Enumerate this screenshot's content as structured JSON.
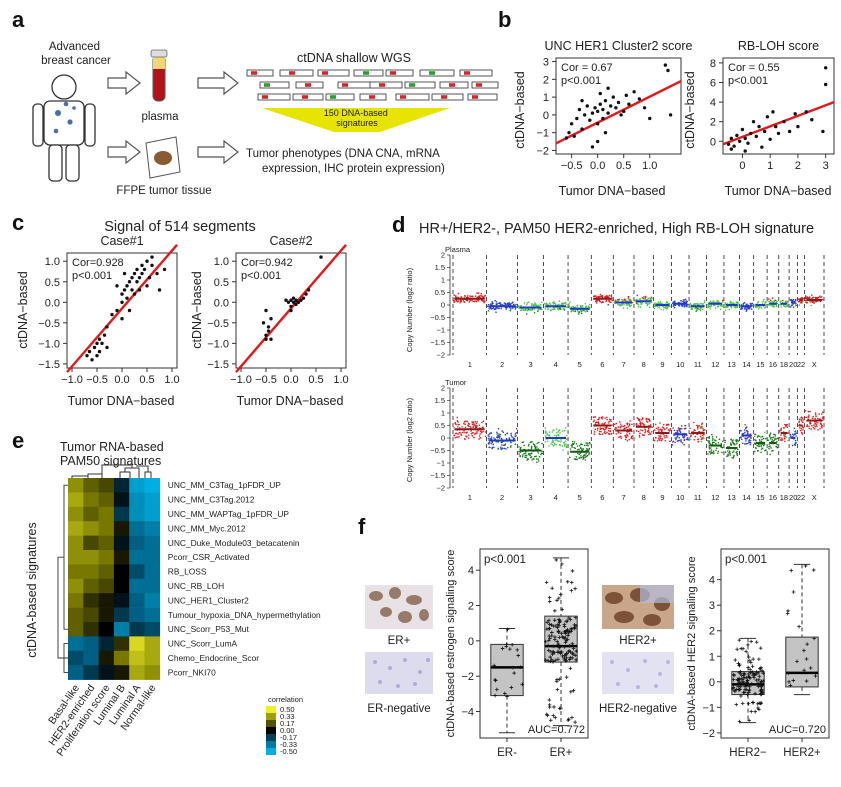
{
  "panel_a": {
    "letter": "a",
    "patient_label": "Advanced\nbreast cancer",
    "plasma_label": "plasma",
    "tissue_label": "FFPE tumor tissue",
    "wgs_title": "ctDNA shallow WGS",
    "signatures_label": "150 DNA-based\nsignatures",
    "phenotypes_label": "Tumor phenotypes (DNA CNA, mRNA\nexpression, IHC protein expression)"
  },
  "panel_b": {
    "letter": "b",
    "xlabel": "Tumor DNA−based",
    "ylabel": "ctDNA−based"
  },
  "panel_c": {
    "letter": "c",
    "title": "Signal of 514 segments",
    "xlabel": "Tumor DNA−based",
    "ylabel": "ctDNA−based"
  },
  "panel_d": {
    "letter": "d",
    "title": "HR+/HER2-, PAM50 HER2-enriched, High RB-LOH signature",
    "plasma_label": "Plasma",
    "tumor_label": "Tumor",
    "ylabel": "Copy Number (log2 ratio)",
    "chromosomes": [
      "1",
      "2",
      "3",
      "4",
      "5",
      "6",
      "7",
      "8",
      "9",
      "10",
      "11",
      "12",
      "13",
      "14",
      "15",
      "16",
      "18",
      "20",
      "22",
      "X"
    ]
  },
  "panel_e": {
    "letter": "e",
    "title": "Tumor RNA-based\nPAM50 signatures",
    "ylabel": "ctDNA-based signatures",
    "legend_title": "correlation",
    "legend_values": [
      "0.50",
      "0.33",
      "0.17",
      "0.00",
      "-0.17",
      "-0.33",
      "-0.50"
    ]
  },
  "panel_f": {
    "letter": "f",
    "er_pos_label": "ER+",
    "er_neg_label": "ER-negative",
    "her2_pos_label": "HER2+",
    "her2_neg_label": "HER2-negative"
  },
  "chart_data": [
    {
      "type": "scatter",
      "title": "UNC HER1 Cluster2 score",
      "xlabel": "Tumor DNA−based",
      "ylabel": "ctDNA−based",
      "xlim": [
        -0.8,
        1.6
      ],
      "ylim": [
        -2.2,
        3.2
      ],
      "xticks": [
        -0.5,
        0.0,
        0.5,
        1.0
      ],
      "xtick_labels": [
        "−0.5",
        "0.0",
        "0.5",
        "1.0"
      ],
      "yticks": [
        -2,
        -1,
        0,
        1,
        2,
        3
      ],
      "ytick_labels": [
        "−2",
        "−1",
        "0",
        "1",
        "2",
        "3"
      ],
      "annotations": [
        "Cor = 0.67",
        "p<0.001"
      ],
      "fit_line": {
        "x": [
          -0.8,
          1.6
        ],
        "y": [
          -1.6,
          1.9
        ]
      },
      "points": [
        [
          -0.6,
          -1.3
        ],
        [
          -0.55,
          -1.0
        ],
        [
          -0.5,
          -0.5
        ],
        [
          -0.45,
          -1.2
        ],
        [
          -0.4,
          -0.2
        ],
        [
          -0.35,
          0.3
        ],
        [
          -0.3,
          -0.8
        ],
        [
          -0.25,
          0.0
        ],
        [
          -0.2,
          0.5
        ],
        [
          -0.15,
          -0.3
        ],
        [
          -0.1,
          0.1
        ],
        [
          -0.05,
          0.4
        ],
        [
          0.0,
          -0.5
        ],
        [
          0.0,
          0.2
        ],
        [
          0.05,
          0.6
        ],
        [
          0.1,
          0.3
        ],
        [
          0.1,
          -0.2
        ],
        [
          0.15,
          0.8
        ],
        [
          0.2,
          0.1
        ],
        [
          0.25,
          0.5
        ],
        [
          0.3,
          1.0
        ],
        [
          0.35,
          0.4
        ],
        [
          0.4,
          0.7
        ],
        [
          0.5,
          0.2
        ],
        [
          0.55,
          1.1
        ],
        [
          0.6,
          0.6
        ],
        [
          0.7,
          1.3
        ],
        [
          0.8,
          0.9
        ],
        [
          0.9,
          0.4
        ],
        [
          1.0,
          -0.2
        ],
        [
          1.3,
          2.8
        ],
        [
          1.35,
          2.5
        ],
        [
          1.4,
          0.0
        ],
        [
          -0.1,
          -1.8
        ],
        [
          0.0,
          -1.5
        ],
        [
          0.15,
          -1.0
        ],
        [
          -0.3,
          0.8
        ],
        [
          0.05,
          1.2
        ],
        [
          0.2,
          1.5
        ],
        [
          0.45,
          0.0
        ]
      ]
    },
    {
      "type": "scatter",
      "title": "RB-LOH score",
      "xlabel": "Tumor DNA−based",
      "ylabel": "ctDNA−based",
      "xlim": [
        -0.7,
        3.3
      ],
      "ylim": [
        -1.3,
        8.5
      ],
      "xticks": [
        0,
        1,
        2,
        3
      ],
      "xtick_labels": [
        "0",
        "1",
        "2",
        "3"
      ],
      "yticks": [
        0,
        2,
        4,
        6,
        8
      ],
      "ytick_labels": [
        "0",
        "2",
        "4",
        "6",
        "8"
      ],
      "annotations": [
        "Cor = 0.55",
        "p<0.001"
      ],
      "fit_line": {
        "x": [
          -0.7,
          3.3
        ],
        "y": [
          -0.3,
          4.0
        ]
      },
      "points": [
        [
          -0.5,
          -0.3
        ],
        [
          -0.4,
          0.3
        ],
        [
          -0.3,
          -0.5
        ],
        [
          -0.2,
          0.6
        ],
        [
          -0.1,
          0.0
        ],
        [
          0.0,
          1.2
        ],
        [
          0.1,
          0.3
        ],
        [
          0.2,
          -0.2
        ],
        [
          0.3,
          0.8
        ],
        [
          0.4,
          2.0
        ],
        [
          0.5,
          0.5
        ],
        [
          0.6,
          1.5
        ],
        [
          0.7,
          -0.6
        ],
        [
          0.8,
          1.0
        ],
        [
          0.9,
          2.5
        ],
        [
          1.0,
          0.2
        ],
        [
          1.1,
          3.0
        ],
        [
          1.2,
          1.5
        ],
        [
          1.3,
          0.8
        ],
        [
          1.5,
          2.0
        ],
        [
          1.7,
          1.0
        ],
        [
          1.9,
          2.8
        ],
        [
          2.0,
          1.5
        ],
        [
          2.3,
          3.0
        ],
        [
          2.5,
          2.2
        ],
        [
          2.9,
          1.0
        ],
        [
          3.0,
          7.5
        ],
        [
          3.0,
          5.8
        ],
        [
          -0.4,
          -0.8
        ],
        [
          0.1,
          -1.0
        ]
      ]
    },
    {
      "type": "scatter",
      "title": "Case#1",
      "xlabel": "Tumor DNA−based",
      "ylabel": "ctDNA−based",
      "xlim": [
        -1.1,
        1.1
      ],
      "ylim": [
        -1.6,
        1.2
      ],
      "xticks": [
        -1.0,
        -0.5,
        0.0,
        0.5,
        1.0
      ],
      "xtick_labels": [
        "−1.0",
        "−0.5",
        "0.0",
        "0.5",
        "1.0"
      ],
      "yticks": [
        -1.5,
        -1.0,
        -0.5,
        0.0,
        0.5,
        1.0
      ],
      "ytick_labels": [
        "−1.5",
        "−1.0",
        "−0.5",
        "0.0",
        "0.5",
        "1.0"
      ],
      "annotations": [
        "Cor=0.928",
        "p<0.001"
      ],
      "fit_line": {
        "x": [
          -1.1,
          1.1
        ],
        "y": [
          -1.7,
          1.4
        ]
      },
      "points": [
        [
          -0.7,
          -1.3
        ],
        [
          -0.65,
          -1.2
        ],
        [
          -0.6,
          -1.4
        ],
        [
          -0.55,
          -1.1
        ],
        [
          -0.5,
          -1.0
        ],
        [
          -0.5,
          -1.3
        ],
        [
          -0.45,
          -0.9
        ],
        [
          -0.45,
          -1.2
        ],
        [
          -0.4,
          -1.0
        ],
        [
          -0.35,
          -0.8
        ],
        [
          -0.3,
          -1.1
        ],
        [
          -0.3,
          -0.6
        ],
        [
          -0.2,
          -0.3
        ],
        [
          -0.1,
          -0.2
        ],
        [
          0.0,
          0.0
        ],
        [
          0.0,
          0.2
        ],
        [
          0.05,
          0.3
        ],
        [
          0.1,
          0.1
        ],
        [
          0.1,
          0.4
        ],
        [
          0.15,
          0.5
        ],
        [
          0.2,
          0.3
        ],
        [
          0.2,
          0.6
        ],
        [
          0.25,
          0.7
        ],
        [
          0.3,
          0.5
        ],
        [
          0.3,
          0.8
        ],
        [
          0.35,
          0.6
        ],
        [
          0.4,
          0.9
        ],
        [
          0.4,
          0.7
        ],
        [
          0.45,
          0.8
        ],
        [
          0.5,
          1.0
        ],
        [
          0.5,
          0.4
        ],
        [
          0.55,
          0.6
        ],
        [
          0.6,
          0.9
        ],
        [
          0.7,
          0.7
        ],
        [
          0.75,
          0.3
        ],
        [
          -0.1,
          0.4
        ],
        [
          0.0,
          -0.4
        ],
        [
          0.15,
          -0.2
        ],
        [
          0.05,
          0.7
        ],
        [
          0.25,
          0.2
        ],
        [
          0.35,
          0.3
        ],
        [
          0.6,
          1.1
        ],
        [
          0.85,
          0.8
        ]
      ]
    },
    {
      "type": "scatter",
      "title": "Case#2",
      "xlabel": "Tumor DNA−based",
      "ylabel": "ctDNA−based",
      "xlim": [
        -1.1,
        1.1
      ],
      "ylim": [
        -1.6,
        1.2
      ],
      "xticks": [
        -1.0,
        -0.5,
        0.0,
        0.5,
        1.0
      ],
      "xtick_labels": [
        "−1.0",
        "−0.5",
        "0.0",
        "0.5",
        "1.0"
      ],
      "yticks": [
        -1.5,
        -1.0,
        -0.5,
        0.0,
        0.5,
        1.0
      ],
      "ytick_labels": [
        "−1.5",
        "−1.0",
        "−0.5",
        "0.0",
        "0.5",
        "1.0"
      ],
      "annotations": [
        "Cor=0.942",
        "p<0.001"
      ],
      "fit_line": {
        "x": [
          -1.1,
          1.1
        ],
        "y": [
          -1.7,
          1.4
        ]
      },
      "points": [
        [
          -0.55,
          -0.5
        ],
        [
          -0.5,
          -0.8
        ],
        [
          -0.5,
          -0.9
        ],
        [
          -0.45,
          -0.7
        ],
        [
          -0.45,
          -0.6
        ],
        [
          -0.4,
          -0.9
        ],
        [
          -0.4,
          -0.4
        ],
        [
          -0.5,
          -0.2
        ],
        [
          -0.05,
          0.0
        ],
        [
          0.0,
          -0.1
        ],
        [
          0.0,
          0.05
        ],
        [
          0.05,
          0.0
        ],
        [
          0.05,
          0.1
        ],
        [
          0.1,
          -0.05
        ],
        [
          0.1,
          0.05
        ],
        [
          0.15,
          0.0
        ],
        [
          0.2,
          0.05
        ],
        [
          0.25,
          0.1
        ],
        [
          0.3,
          0.2
        ],
        [
          0.35,
          0.3
        ],
        [
          0.6,
          1.1
        ],
        [
          0.0,
          -0.2
        ],
        [
          -0.1,
          0.05
        ]
      ]
    },
    {
      "type": "heatmap",
      "rows": [
        "UNC_MM_C3Tag_1pFDR_UP",
        "UNC_MM_C3Tag.2012",
        "UNC_MM_WAPTag_1pFDR_UP",
        "UNC_MM_Myc.2012",
        "UNC_Duke_Module03_betacatenin",
        "Pcorr_CSR_Activated",
        "RB_LOSS",
        "UNC_RB_LOH",
        "UNC_HER1_Cluster2",
        "Tumour_hypoxia_DNA_hypermethylation",
        "UNC_Scorr_P53_Mut",
        "UNC_Scorr_LumA",
        "Chemo_Endocrine_Scor",
        "Pcorr_NKI70"
      ],
      "columns": [
        "Basal-like",
        "HER2-enriched",
        "Proliferation score",
        "Luminal B",
        "Luminal A",
        "Normal-like"
      ],
      "values": [
        [
          0.3,
          0.2,
          0.15,
          -0.1,
          -0.45,
          -0.5
        ],
        [
          0.35,
          0.25,
          0.2,
          -0.05,
          -0.4,
          -0.45
        ],
        [
          0.3,
          0.2,
          0.25,
          -0.15,
          -0.4,
          -0.45
        ],
        [
          0.35,
          0.3,
          0.25,
          0.05,
          -0.3,
          -0.35
        ],
        [
          0.3,
          0.15,
          0.2,
          -0.05,
          -0.25,
          -0.3
        ],
        [
          0.3,
          0.3,
          0.25,
          0.05,
          -0.3,
          -0.3
        ],
        [
          0.25,
          0.25,
          0.2,
          0.0,
          -0.2,
          -0.3
        ],
        [
          0.3,
          0.2,
          0.15,
          0.0,
          -0.3,
          -0.3
        ],
        [
          0.25,
          0.1,
          0.05,
          -0.05,
          -0.25,
          -0.35
        ],
        [
          0.2,
          0.15,
          0.05,
          -0.15,
          -0.25,
          -0.3
        ],
        [
          0.2,
          0.1,
          0.0,
          -0.35,
          -0.15,
          -0.2
        ],
        [
          -0.3,
          -0.25,
          -0.1,
          0.1,
          0.45,
          0.35
        ],
        [
          -0.2,
          -0.25,
          0.05,
          0.25,
          0.4,
          0.35
        ],
        [
          -0.25,
          -0.15,
          -0.05,
          0.05,
          0.35,
          0.3
        ]
      ],
      "scale": [
        -0.5,
        0.5
      ]
    },
    {
      "type": "box",
      "ylabel": "ctDNA-based estrogen signaling score",
      "categories": [
        "ER-",
        "ER+"
      ],
      "ylim": [
        -5.5,
        5.2
      ],
      "yticks": [
        -4,
        -2,
        0,
        2,
        4
      ],
      "ytick_labels": [
        "−4",
        "−2",
        "0",
        "2",
        "4"
      ],
      "annotations": [
        "p<0.001",
        "AUC=0.772"
      ],
      "boxes": [
        {
          "min": -5.2,
          "q1": -3.1,
          "median": -1.5,
          "q3": -0.2,
          "max": 0.7
        },
        {
          "min": -4.8,
          "q1": -1.2,
          "median": -0.3,
          "q3": 1.4,
          "max": 4.7
        }
      ]
    },
    {
      "type": "box",
      "ylabel": "ctDNA-based HER2 signaling score",
      "categories": [
        "HER2−",
        "HER2+"
      ],
      "ylim": [
        -2.2,
        5.2
      ],
      "yticks": [
        -2,
        -1,
        0,
        1,
        2,
        3,
        4
      ],
      "ytick_labels": [
        "−2",
        "−1",
        "0",
        "1",
        "2",
        "3",
        "4"
      ],
      "annotations": [
        "p<0.001",
        "AUC=0.720"
      ],
      "boxes": [
        {
          "min": -1.6,
          "q1": -0.5,
          "median": -0.1,
          "q3": 0.4,
          "max": 1.7
        },
        {
          "min": -0.5,
          "q1": -0.2,
          "median": 0.35,
          "q3": 1.75,
          "max": 4.6
        }
      ]
    }
  ]
}
